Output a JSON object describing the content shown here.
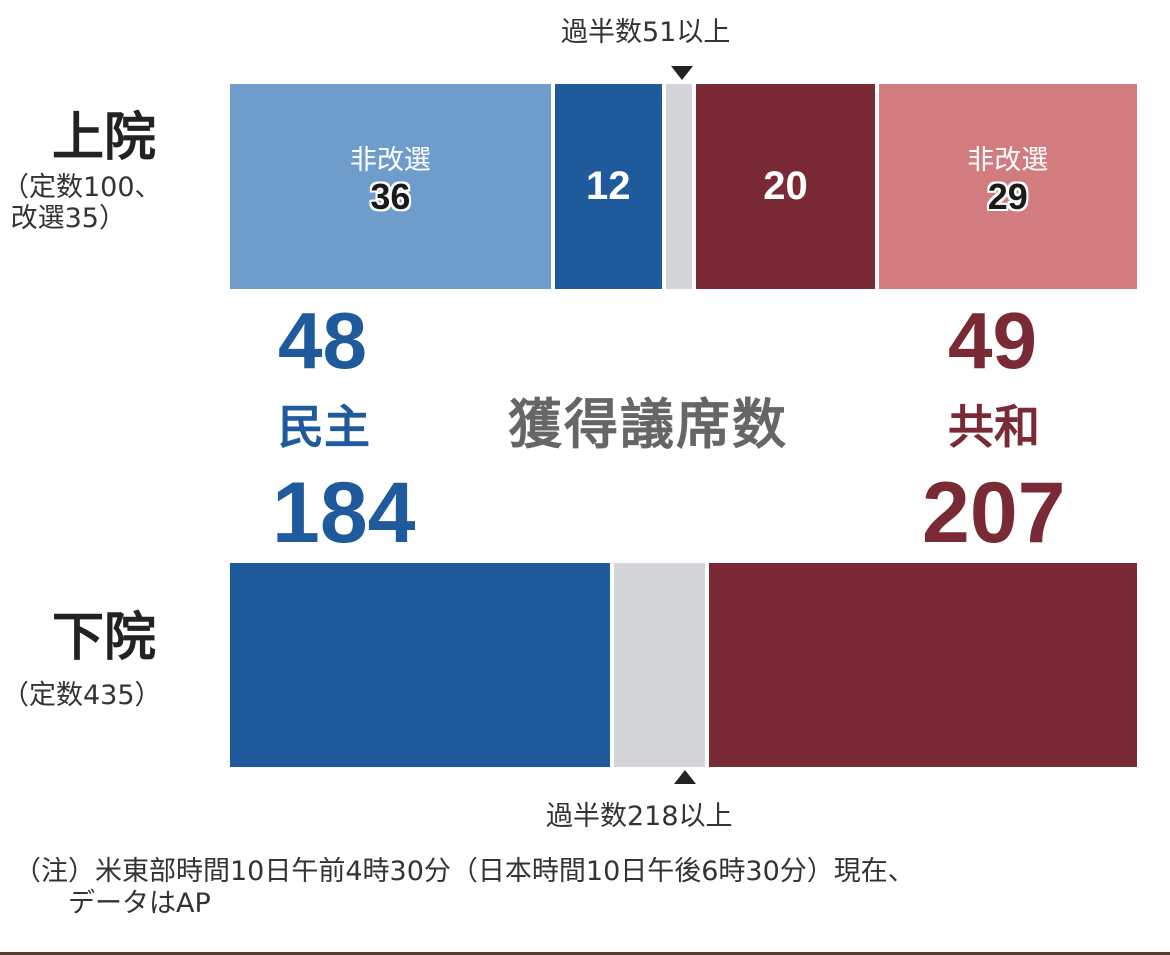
{
  "colors": {
    "dem_dark": "#1f5a9c",
    "dem_light": "#6f9dcb",
    "rep_dark": "#7a2a35",
    "rep_light": "#d27c80",
    "vacant": "#d4d5d8"
  },
  "senate": {
    "title": "上院",
    "subtitle": "（定数100、\n 改選35）",
    "majority_label": "過半数51以上"
  },
  "house": {
    "title": "下院",
    "subtitle": "（定数435）",
    "majority_label": "過半数218以上"
  },
  "center_label": "獲得議席数",
  "dem": {
    "name": "民主",
    "senate_total": "48",
    "house_total": "184"
  },
  "rep": {
    "name": "共和",
    "senate_total": "49",
    "house_total": "207"
  },
  "chart_data": [
    {
      "type": "bar",
      "chamber": "上院",
      "total_seats": 100,
      "majority_threshold": 51,
      "segments": [
        {
          "party": "民主",
          "label": "非改選",
          "value": 36,
          "value_label": "36",
          "color": "#6f9dcb"
        },
        {
          "party": "民主",
          "label": "",
          "value": 12,
          "value_label": "12",
          "color": "#1f5a9c"
        },
        {
          "party": "",
          "label": "",
          "value": 3,
          "value_label": "",
          "color": "#d4d5d8"
        },
        {
          "party": "共和",
          "label": "",
          "value": 20,
          "value_label": "20",
          "color": "#7a2a35"
        },
        {
          "party": "共和",
          "label": "非改選",
          "value": 29,
          "value_label": "29",
          "color": "#d27c80"
        }
      ]
    },
    {
      "type": "bar",
      "chamber": "下院",
      "total_seats": 435,
      "majority_threshold": 218,
      "segments": [
        {
          "party": "民主",
          "value": 184,
          "color": "#1f5a9c"
        },
        {
          "party": "",
          "value": 44,
          "color": "#d4d5d8"
        },
        {
          "party": "共和",
          "value": 207,
          "color": "#7a2a35"
        }
      ]
    }
  ],
  "note": "（注）米東部時間10日午前4時30分（日本時間10日午後6時30分）現在、\n　　データはAP"
}
